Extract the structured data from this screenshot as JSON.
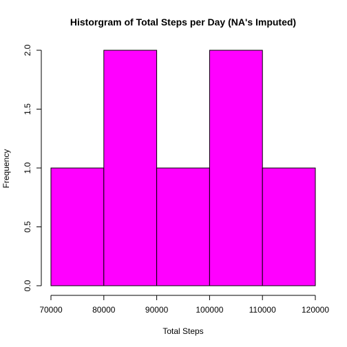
{
  "chart_data": {
    "type": "bar",
    "title": "Historgram of Total Steps per Day (NA's Imputed)",
    "xlabel": "Total Steps",
    "ylabel": "Frequency",
    "bins": [
      {
        "start": 70000,
        "end": 80000,
        "count": 1
      },
      {
        "start": 80000,
        "end": 90000,
        "count": 2
      },
      {
        "start": 90000,
        "end": 100000,
        "count": 1
      },
      {
        "start": 100000,
        "end": 110000,
        "count": 2
      },
      {
        "start": 110000,
        "end": 120000,
        "count": 1
      }
    ],
    "xlim": [
      70000,
      120000
    ],
    "ylim": [
      0,
      2
    ],
    "x_ticks": [
      70000,
      80000,
      90000,
      100000,
      110000,
      120000
    ],
    "y_ticks": [
      "0.0",
      "0.5",
      "1.0",
      "1.5",
      "2.0"
    ],
    "bar_color": "#FF00FF",
    "grid": false,
    "legend": "none"
  }
}
